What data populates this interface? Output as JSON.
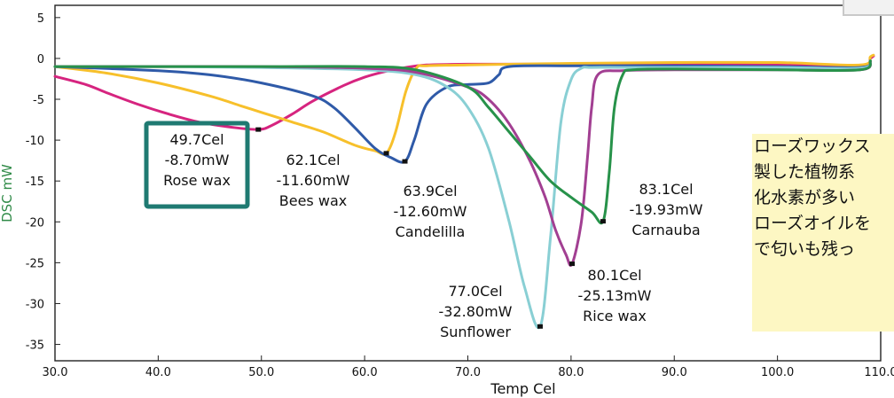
{
  "chart_data": {
    "type": "line",
    "title": "",
    "xlabel": "Temp Cel",
    "ylabel": "DSC mW",
    "xlim": [
      30,
      110
    ],
    "ylim": [
      -37,
      6.5
    ],
    "xticks": [
      "30.0",
      "40.0",
      "50.0",
      "60.0",
      "70.0",
      "80.0",
      "90.0",
      "100.0",
      "110.0"
    ],
    "yticks": [
      "5",
      "0",
      "-5",
      "-10",
      "-15",
      "-20",
      "-25",
      "-30",
      "-35"
    ],
    "series": [
      {
        "name": "Rose wax",
        "color": "#d6247f",
        "x": [
          30,
          33,
          35,
          38,
          41,
          44,
          47,
          49.7,
          51,
          53,
          55,
          58,
          60,
          62,
          64,
          66,
          70,
          75,
          80,
          90,
          100,
          108,
          109,
          109.3
        ],
        "y": [
          -2.2,
          -3.2,
          -4.2,
          -5.6,
          -6.8,
          -7.8,
          -8.4,
          -8.7,
          -8.2,
          -6.8,
          -5.2,
          -3.3,
          -2.3,
          -1.6,
          -1.1,
          -0.8,
          -0.7,
          -0.7,
          -0.7,
          -0.7,
          -0.8,
          -0.9,
          0,
          0.3
        ]
      },
      {
        "name": "Bees wax",
        "color": "#f7c02b",
        "x": [
          30,
          35,
          40,
          45,
          48,
          50,
          53,
          56,
          59,
          61,
          62.1,
          63,
          64,
          65,
          66,
          70,
          80,
          90,
          100,
          108,
          109,
          109.3
        ],
        "y": [
          -1,
          -1.8,
          -3,
          -4.6,
          -5.8,
          -6.6,
          -7.8,
          -9,
          -10.6,
          -11.3,
          -11.6,
          -9,
          -4,
          -1.2,
          -0.9,
          -0.8,
          -0.6,
          -0.5,
          -0.5,
          -0.8,
          0.2,
          0.4
        ]
      },
      {
        "name": "Candelilla",
        "color": "#2f5aa8",
        "x": [
          30,
          40,
          45,
          50,
          55,
          57,
          59,
          61,
          62.5,
          63.9,
          64.8,
          66,
          68,
          70,
          72,
          73,
          74,
          80,
          90,
          100,
          108,
          109
        ],
        "y": [
          -1,
          -1.5,
          -2,
          -3,
          -4.6,
          -6,
          -8.4,
          -11,
          -12.1,
          -12.6,
          -10,
          -5.6,
          -3.5,
          -3.2,
          -3,
          -2,
          -1,
          -0.9,
          -0.9,
          -1,
          -1.1,
          -0.3
        ]
      },
      {
        "name": "Sunflower",
        "color": "#89cfd4",
        "x": [
          30,
          40,
          50,
          60,
          65,
          68,
          70,
          72,
          74,
          75.5,
          77,
          78,
          79,
          80,
          81,
          82,
          85,
          90,
          100,
          108,
          109
        ],
        "y": [
          -1,
          -1,
          -1.1,
          -1.4,
          -2,
          -3.5,
          -6,
          -11,
          -20,
          -28,
          -32.8,
          -22,
          -8,
          -2.6,
          -1.2,
          -1.1,
          -1.1,
          -1.1,
          -1.1,
          -1.2,
          -0.3
        ]
      },
      {
        "name": "Rice wax",
        "color": "#a23f92",
        "x": [
          30,
          40,
          50,
          60,
          65,
          70,
          72,
          74,
          76,
          77.5,
          78.5,
          79.5,
          80.1,
          81,
          81.6,
          82,
          82.6,
          85,
          90,
          100,
          108,
          109
        ],
        "y": [
          -1,
          -1,
          -1,
          -1.2,
          -1.7,
          -3.5,
          -5,
          -8,
          -12.5,
          -17,
          -21,
          -24,
          -25.13,
          -20,
          -12,
          -6,
          -2,
          -1.5,
          -1.4,
          -1.4,
          -1.4,
          -0.4
        ]
      },
      {
        "name": "Carnauba",
        "color": "#27924a",
        "x": [
          30,
          40,
          50,
          60,
          65,
          70,
          72,
          74,
          76,
          78,
          80,
          82,
          83.1,
          83.7,
          84.2,
          85,
          86,
          90,
          100,
          108,
          109
        ],
        "y": [
          -1,
          -1,
          -1,
          -1,
          -1.4,
          -3.5,
          -6,
          -9,
          -12,
          -15,
          -17,
          -18.8,
          -19.93,
          -14,
          -6,
          -2,
          -1.4,
          -1.3,
          -1.4,
          -1.4,
          -0.3
        ]
      }
    ],
    "annotations": [
      {
        "x": 49.7,
        "y": -8.7,
        "lines": [
          "49.7Cel",
          "-8.70mW",
          "Rose wax"
        ],
        "boxed": true
      },
      {
        "x": 62.1,
        "y": -11.6,
        "lines": [
          "62.1Cel",
          "-11.60mW",
          "Bees wax"
        ]
      },
      {
        "x": 63.9,
        "y": -12.6,
        "lines": [
          "63.9Cel",
          "-12.60mW",
          "Candelilla"
        ]
      },
      {
        "x": 77.0,
        "y": -32.8,
        "lines": [
          "77.0Cel",
          "-32.80mW",
          "Sunflower"
        ]
      },
      {
        "x": 80.1,
        "y": -25.13,
        "lines": [
          "80.1Cel",
          "-25.13mW",
          "Rice wax"
        ]
      },
      {
        "x": 83.1,
        "y": -19.93,
        "lines": [
          "83.1Cel",
          "-19.93mW",
          "Carnauba"
        ]
      }
    ],
    "box_color": "#1f7a72",
    "grid": false,
    "legend": "none"
  },
  "note": {
    "lines": [
      "ローズワックス",
      "製した植物系",
      "化水素が多い",
      "ローズオイルを",
      "で匂いも残っ"
    ]
  }
}
